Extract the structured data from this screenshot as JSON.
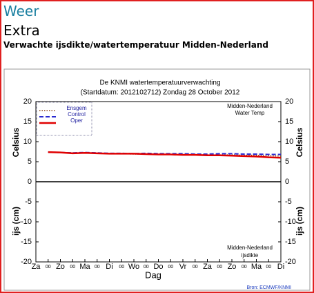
{
  "header": {
    "title": "Weer",
    "subtitle": "Extra",
    "heading": "Verwachte ijsdikte/watertemperatuur Midden-Nederland"
  },
  "chart_data": {
    "type": "line",
    "title": "De KNMI watertemperatuurverwachting",
    "subtitle": "(Startdatum: 2012102712)  Zondag   28 October  2012",
    "xlabel": "Dag",
    "ylabel": "Celsius",
    "ylabel_lower": "ijs (cm)",
    "annotations": [
      "Midden-Nederland",
      "Water Temp",
      "Midden-Nederland",
      "ijsdikte"
    ],
    "source": "Bron: ECMWF/KNMI",
    "categories": [
      "Za",
      "00",
      "Zo",
      "00",
      "Ma",
      "00",
      "Di",
      "00",
      "Wo",
      "00",
      "Do",
      "00",
      "Vr",
      "00",
      "Za",
      "00",
      "Zo",
      "00",
      "Ma",
      "00",
      "Di"
    ],
    "ylim": [
      -20,
      20
    ],
    "yticks": [
      -20,
      -15,
      -10,
      -5,
      0,
      5,
      10,
      15,
      20
    ],
    "legend": "upper left",
    "series": [
      {
        "name": "Ensgem",
        "color": "#8b4513",
        "style": "dotted",
        "values": [
          null,
          7.4,
          7.3,
          7.2,
          7.2,
          7.1,
          7.0,
          7.0,
          6.9,
          6.9,
          6.9,
          6.8,
          6.8,
          6.8,
          6.7,
          6.7,
          6.7,
          6.6,
          6.6,
          6.5,
          6.4
        ]
      },
      {
        "name": "Control",
        "color": "#2a2ad0",
        "style": "dashed",
        "values": [
          null,
          7.4,
          7.3,
          7.2,
          7.3,
          7.2,
          7.1,
          7.1,
          7.0,
          7.1,
          7.0,
          7.0,
          7.0,
          6.9,
          6.9,
          7.0,
          7.0,
          6.9,
          6.9,
          6.8,
          6.8
        ]
      },
      {
        "name": "Oper",
        "color": "#e00000",
        "style": "solid",
        "values": [
          null,
          7.4,
          7.3,
          7.1,
          7.2,
          7.1,
          7.0,
          7.0,
          7.0,
          6.9,
          6.8,
          6.8,
          6.7,
          6.7,
          6.6,
          6.6,
          6.5,
          6.4,
          6.3,
          6.1,
          6.0
        ]
      }
    ]
  }
}
